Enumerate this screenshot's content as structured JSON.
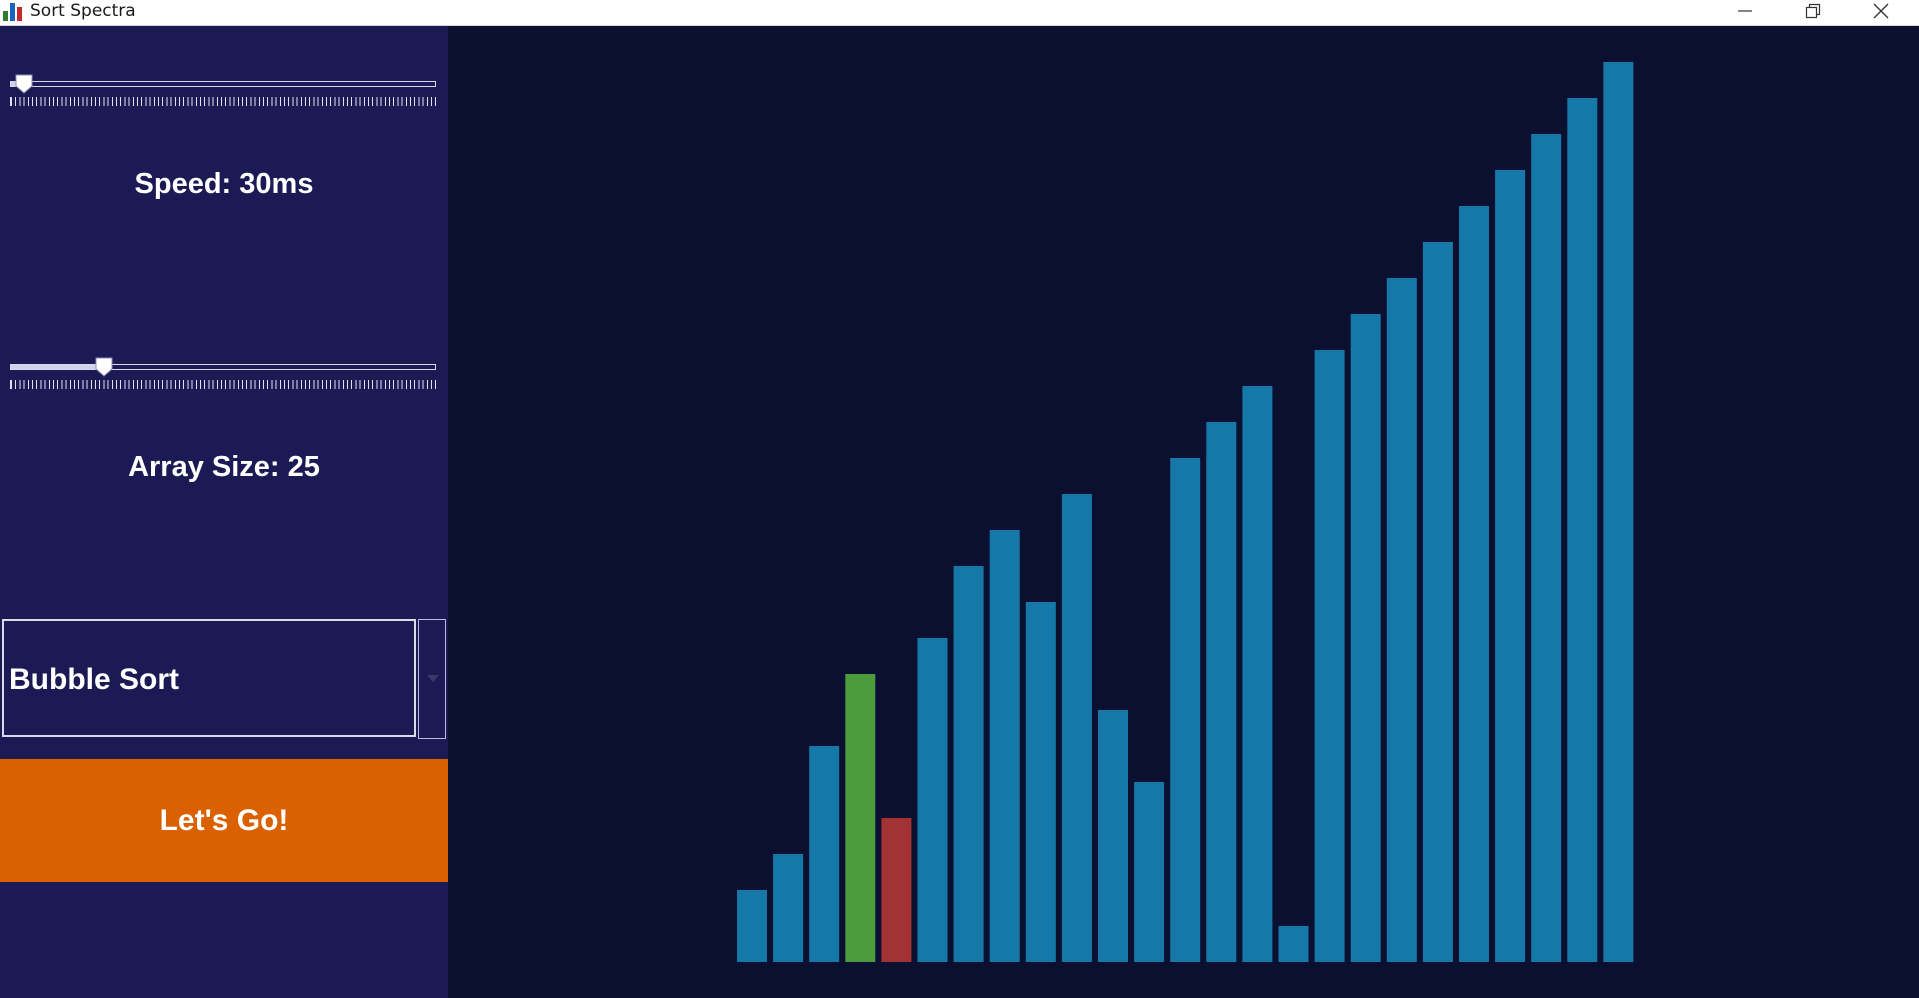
{
  "window": {
    "title": "Sort Spectra",
    "controls": [
      "minimize-icon",
      "restore-icon",
      "close-icon"
    ]
  },
  "sidebar": {
    "speed_slider": {
      "value_fraction": 0.03
    },
    "speed_label": "Speed: 30ms",
    "size_slider": {
      "value_fraction": 0.22
    },
    "size_label": "Array Size: 25",
    "algorithm_select": {
      "selected": "Bubble Sort"
    },
    "go_button_label": "Let's Go!"
  },
  "colors": {
    "sidebar_bg": "#1c1a55",
    "canvas_bg": "#0b1030",
    "bar_default": "#1678a8",
    "bar_compare": "#4a9c3d",
    "bar_swap": "#a33235",
    "button": "#db6100"
  },
  "chart_data": {
    "type": "bar",
    "values": [
      2,
      3,
      6,
      8,
      4,
      9,
      11,
      12,
      10,
      13,
      7,
      5,
      14,
      15,
      16,
      1,
      17,
      18,
      19,
      20,
      21,
      22,
      23,
      24,
      25
    ],
    "highlight": {
      "3": "compare",
      "4": "swap"
    },
    "ylim": [
      0,
      25
    ]
  }
}
